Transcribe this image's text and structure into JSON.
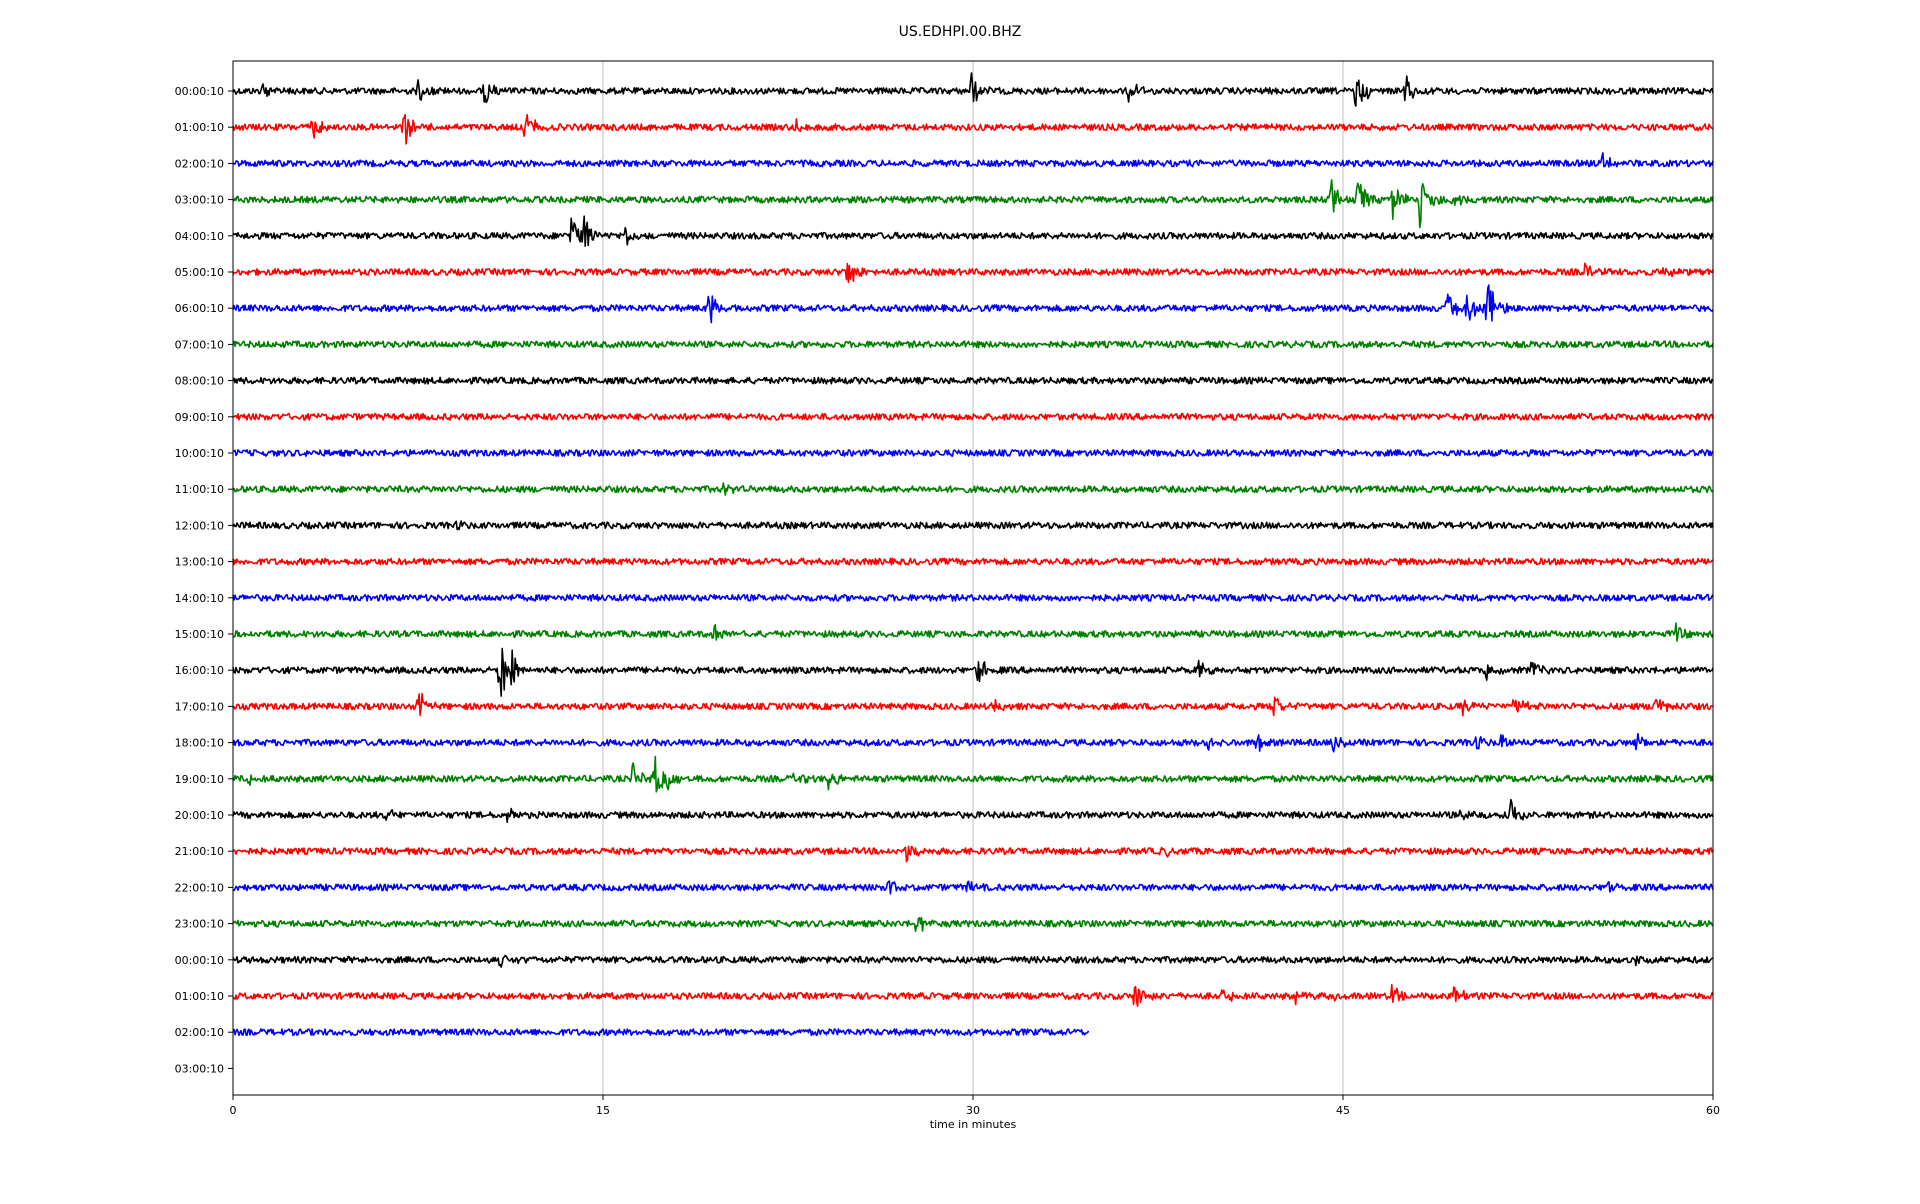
{
  "chart_data": {
    "type": "line",
    "title": "US.EDHPI.00.BHZ",
    "xlabel": "time in minutes",
    "ylabel": "",
    "xlim": [
      0,
      60
    ],
    "x_ticks": [
      "0",
      "15",
      "30",
      "45",
      "60"
    ],
    "x_tick_values": [
      0,
      15,
      30,
      45,
      60
    ],
    "grid": "vertical gridlines at 15, 30, 45",
    "row_labels": [
      "00:00:10",
      "01:00:10",
      "02:00:10",
      "03:00:10",
      "04:00:10",
      "05:00:10",
      "06:00:10",
      "07:00:10",
      "08:00:10",
      "09:00:10",
      "10:00:10",
      "11:00:10",
      "12:00:10",
      "13:00:10",
      "14:00:10",
      "15:00:10",
      "16:00:10",
      "17:00:10",
      "18:00:10",
      "19:00:10",
      "20:00:10",
      "21:00:10",
      "22:00:10",
      "23:00:10",
      "00:00:10",
      "01:00:10",
      "02:00:10",
      "03:00:10"
    ],
    "trace_colors": [
      "#000000",
      "#ff0000",
      "#0000ff",
      "#008000"
    ],
    "series": [
      {
        "row": 0,
        "end_minute": 60,
        "events": [
          [
            1.2,
            0.7
          ],
          [
            7.5,
            0.8
          ],
          [
            10.2,
            0.9
          ],
          [
            29.9,
            1.0
          ],
          [
            36.3,
            0.8
          ],
          [
            45.5,
            1.4
          ],
          [
            47.5,
            1.0
          ]
        ]
      },
      {
        "row": 1,
        "end_minute": 60,
        "events": [
          [
            3.2,
            0.6
          ],
          [
            6.9,
            1.3
          ],
          [
            11.8,
            1.1
          ],
          [
            22.8,
            0.4
          ]
        ]
      },
      {
        "row": 2,
        "end_minute": 60,
        "events": [
          [
            55.5,
            0.6
          ]
        ]
      },
      {
        "row": 3,
        "end_minute": 60,
        "events": [
          [
            44.5,
            1.1
          ],
          [
            45.6,
            1.2
          ],
          [
            47.0,
            1.0
          ],
          [
            48.1,
            1.7
          ],
          [
            49.4,
            0.6
          ]
        ]
      },
      {
        "row": 4,
        "end_minute": 60,
        "events": [
          [
            13.7,
            1.4
          ],
          [
            14.2,
            1.2
          ],
          [
            15.9,
            0.5
          ]
        ]
      },
      {
        "row": 5,
        "end_minute": 60,
        "events": [
          [
            24.9,
            0.9
          ],
          [
            54.8,
            0.4
          ],
          [
            58.0,
            0.3
          ]
        ]
      },
      {
        "row": 6,
        "end_minute": 60,
        "events": [
          [
            19.3,
            1.0
          ],
          [
            49.2,
            1.1
          ],
          [
            50.0,
            1.0
          ],
          [
            50.8,
            1.8
          ]
        ]
      },
      {
        "row": 7,
        "end_minute": 60,
        "events": []
      },
      {
        "row": 8,
        "end_minute": 60,
        "events": []
      },
      {
        "row": 9,
        "end_minute": 60,
        "events": []
      },
      {
        "row": 10,
        "end_minute": 60,
        "events": []
      },
      {
        "row": 11,
        "end_minute": 60,
        "events": [
          [
            19.9,
            0.5
          ]
        ]
      },
      {
        "row": 12,
        "end_minute": 60,
        "events": [
          [
            8.9,
            0.3
          ]
        ]
      },
      {
        "row": 13,
        "end_minute": 60,
        "events": []
      },
      {
        "row": 14,
        "end_minute": 60,
        "events": []
      },
      {
        "row": 15,
        "end_minute": 60,
        "events": [
          [
            19.5,
            0.6
          ],
          [
            58.5,
            0.5
          ]
        ]
      },
      {
        "row": 16,
        "end_minute": 60,
        "events": [
          [
            10.8,
            1.9
          ],
          [
            11.3,
            1.0
          ],
          [
            30.2,
            0.9
          ],
          [
            39.1,
            0.5
          ],
          [
            50.8,
            0.5
          ],
          [
            52.6,
            0.5
          ]
        ]
      },
      {
        "row": 17,
        "end_minute": 60,
        "events": [
          [
            7.5,
            0.9
          ],
          [
            30.8,
            0.4
          ],
          [
            42.2,
            0.6
          ],
          [
            49.8,
            0.5
          ],
          [
            51.9,
            0.6
          ],
          [
            57.6,
            0.8
          ]
        ]
      },
      {
        "row": 18,
        "end_minute": 60,
        "events": [
          [
            39.5,
            0.5
          ],
          [
            41.5,
            0.6
          ],
          [
            44.5,
            0.5
          ],
          [
            50.3,
            0.5
          ],
          [
            51.4,
            0.6
          ],
          [
            56.9,
            0.5
          ]
        ]
      },
      {
        "row": 19,
        "end_minute": 60,
        "events": [
          [
            0.5,
            0.4
          ],
          [
            16.2,
            0.8
          ],
          [
            17.1,
            1.1
          ],
          [
            17.6,
            0.7
          ],
          [
            22.7,
            0.4
          ],
          [
            24.1,
            0.6
          ]
        ]
      },
      {
        "row": 20,
        "end_minute": 60,
        "events": [
          [
            6.2,
            0.3
          ],
          [
            11.1,
            0.4
          ],
          [
            49.8,
            0.4
          ],
          [
            51.8,
            0.8
          ]
        ]
      },
      {
        "row": 21,
        "end_minute": 60,
        "events": [
          [
            27.3,
            0.6
          ],
          [
            37.6,
            0.4
          ]
        ]
      },
      {
        "row": 22,
        "end_minute": 60,
        "events": [
          [
            26.5,
            0.6
          ],
          [
            29.7,
            0.4
          ],
          [
            55.7,
            0.3
          ]
        ]
      },
      {
        "row": 23,
        "end_minute": 60,
        "events": [
          [
            27.7,
            0.7
          ]
        ]
      },
      {
        "row": 24,
        "end_minute": 60,
        "events": [
          [
            10.8,
            0.4
          ],
          [
            56.6,
            0.5
          ]
        ]
      },
      {
        "row": 25,
        "end_minute": 60,
        "events": [
          [
            36.5,
            1.0
          ],
          [
            40.1,
            0.5
          ],
          [
            43.1,
            0.4
          ],
          [
            44.7,
            0.4
          ],
          [
            47.0,
            0.7
          ],
          [
            49.5,
            0.5
          ]
        ]
      },
      {
        "row": 26,
        "end_minute": 34.7,
        "events": []
      }
    ]
  }
}
